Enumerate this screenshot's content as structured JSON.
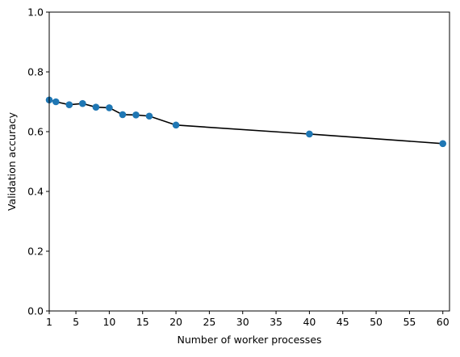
{
  "chart_data": {
    "type": "line",
    "title": "",
    "xlabel": "Number of worker processes",
    "ylabel": "Validation accuracy",
    "xlim": [
      1,
      61
    ],
    "ylim": [
      0.0,
      1.0
    ],
    "xticks": [
      1,
      5,
      10,
      15,
      20,
      25,
      30,
      35,
      40,
      45,
      50,
      55,
      60
    ],
    "xtick_labels": [
      "1",
      "5",
      "10",
      "15",
      "20",
      "25",
      "30",
      "35",
      "40",
      "45",
      "50",
      "55",
      "60"
    ],
    "yticks": [
      0.0,
      0.2,
      0.4,
      0.6,
      0.8,
      1.0
    ],
    "ytick_labels": [
      "0.0",
      "0.2",
      "0.4",
      "0.6",
      "0.8",
      "1.0"
    ],
    "grid": false,
    "legend": "none",
    "line_color": "#000000",
    "marker_color": "#1f77b4",
    "x": [
      1,
      2,
      4,
      6,
      8,
      10,
      12,
      14,
      16,
      20,
      40,
      60
    ],
    "y": [
      0.706,
      0.7,
      0.69,
      0.694,
      0.682,
      0.68,
      0.657,
      0.656,
      0.652,
      0.622,
      0.592,
      0.56
    ]
  }
}
